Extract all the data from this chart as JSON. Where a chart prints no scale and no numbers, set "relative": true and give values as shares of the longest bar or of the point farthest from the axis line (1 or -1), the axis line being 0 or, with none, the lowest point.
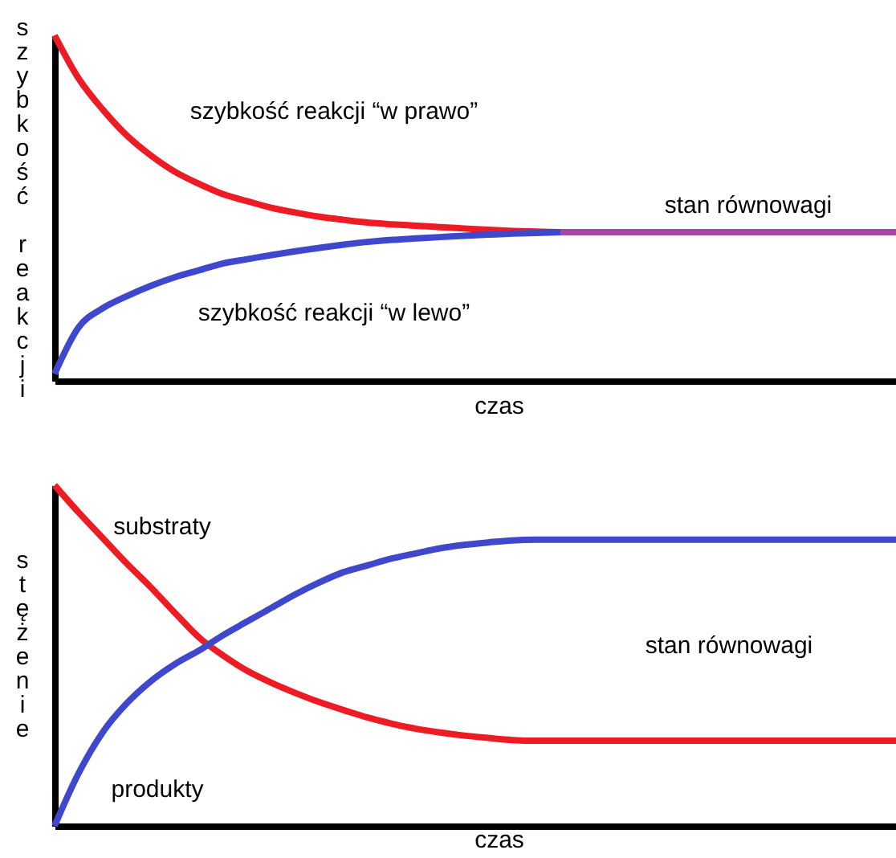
{
  "chart_data": [
    {
      "type": "line",
      "xlabel": "czas",
      "ylabel": "szybkość reakcji",
      "relative": true,
      "categories": [
        null,
        null,
        null,
        null,
        null,
        null,
        null,
        null,
        null,
        null,
        null,
        null,
        null,
        null,
        null,
        null,
        null,
        null,
        null,
        null,
        null,
        null,
        null,
        null,
        null,
        null,
        null,
        null,
        null,
        null,
        null,
        null,
        null,
        null,
        null,
        null
      ],
      "series": [
        {
          "name": "szybkość reakcji “w prawo”",
          "color": "#ed1c24",
          "values": [
            1,
            0.875,
            0.785,
            0.71,
            0.652,
            0.605,
            0.57,
            0.54,
            0.52,
            0.501,
            0.487,
            0.475,
            0.466,
            0.458,
            0.453,
            0.449,
            0.445,
            0.441,
            0.437,
            0.434,
            0.432,
            0.43,
            null,
            null,
            null,
            null,
            null,
            null,
            null,
            null,
            null,
            null,
            null,
            null,
            null,
            null
          ]
        },
        {
          "name": "szybkość reakcji “w lewo”",
          "color": "#3f48cc",
          "values": [
            0.02,
            0.155,
            0.21,
            0.245,
            0.275,
            0.3,
            0.32,
            0.34,
            0.352,
            0.364,
            0.375,
            0.385,
            0.394,
            0.402,
            0.408,
            0.412,
            0.416,
            0.42,
            0.423,
            0.426,
            0.428,
            0.43,
            null,
            null,
            null,
            null,
            null,
            null,
            null,
            null,
            null,
            null,
            null,
            null,
            null,
            null
          ]
        },
        {
          "name": "stan równowagi",
          "color": "#a349a4",
          "values": [
            null,
            null,
            null,
            null,
            null,
            null,
            null,
            null,
            null,
            null,
            null,
            null,
            null,
            null,
            null,
            null,
            null,
            null,
            null,
            null,
            null,
            0.43,
            0.43,
            0.43,
            0.43,
            0.43,
            0.43,
            0.43,
            0.43,
            0.43,
            0.43,
            0.43,
            0.43,
            0.43,
            0.43,
            0.43
          ]
        }
      ]
    },
    {
      "type": "line",
      "xlabel": "czas",
      "ylabel": "stężenie",
      "relative": true,
      "annotations": [
        "stan równowagi"
      ],
      "categories": [
        null,
        null,
        null,
        null,
        null,
        null,
        null,
        null,
        null,
        null,
        null,
        null,
        null,
        null,
        null,
        null,
        null,
        null,
        null,
        null,
        null,
        null,
        null,
        null,
        null,
        null,
        null,
        null,
        null,
        null,
        null,
        null,
        null,
        null,
        null,
        null
      ],
      "series": [
        {
          "name": "substraty",
          "color": "#ed1c24",
          "values": [
            1,
            0.92,
            0.845,
            0.77,
            0.7,
            0.625,
            0.553,
            0.5,
            0.455,
            0.42,
            0.39,
            0.363,
            0.34,
            0.318,
            0.3,
            0.285,
            0.274,
            0.265,
            0.258,
            0.252,
            0.25,
            0.25,
            0.25,
            0.25,
            0.25,
            0.25,
            0.25,
            0.25,
            0.25,
            0.25,
            0.25,
            0.25,
            0.25,
            0.25,
            0.25,
            0.25
          ]
        },
        {
          "name": "produkty",
          "color": "#3f48cc",
          "values": [
            0,
            0.155,
            0.275,
            0.36,
            0.425,
            0.475,
            0.515,
            0.56,
            0.6,
            0.64,
            0.68,
            0.715,
            0.745,
            0.765,
            0.785,
            0.8,
            0.815,
            0.825,
            0.832,
            0.838,
            0.84,
            0.84,
            0.84,
            0.84,
            0.84,
            0.84,
            0.84,
            0.84,
            0.84,
            0.84,
            0.84,
            0.84,
            0.84,
            0.84,
            0.84,
            0.84
          ]
        }
      ]
    }
  ]
}
